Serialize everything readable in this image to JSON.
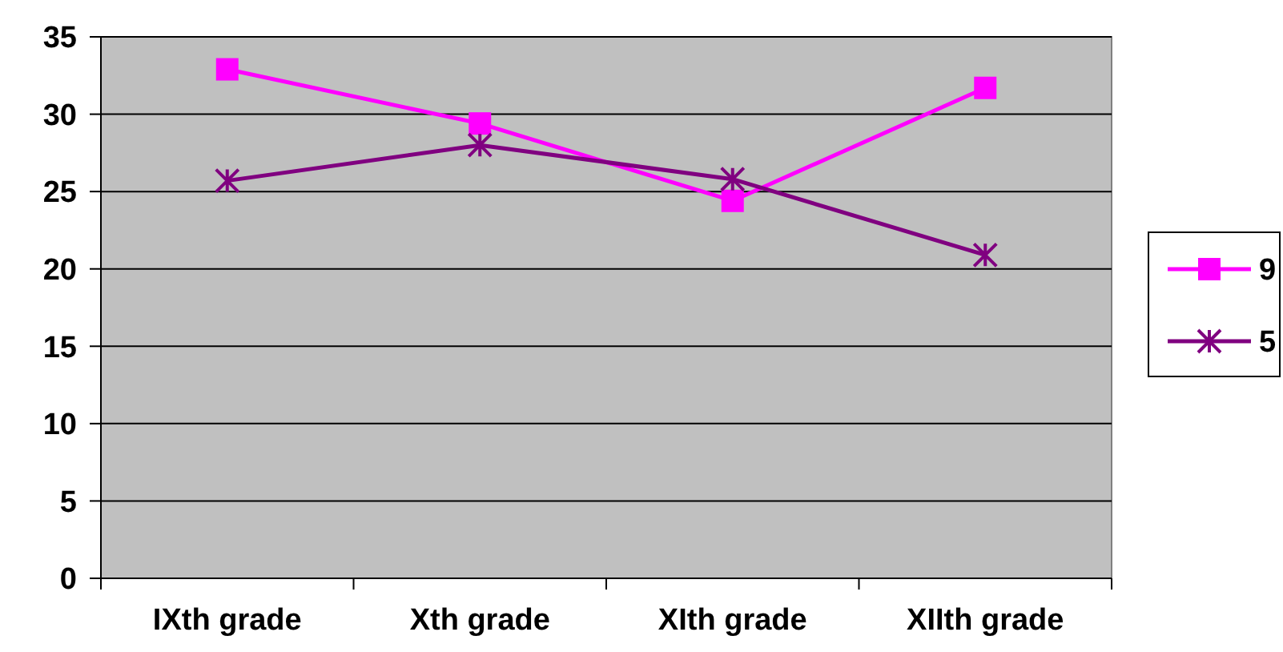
{
  "chart_data": {
    "type": "line",
    "categories": [
      "IXth grade",
      "Xth grade",
      "XIth grade",
      "XIIth grade"
    ],
    "series": [
      {
        "name": "9",
        "color": "#ff00ff",
        "marker": "square",
        "values": [
          32.9,
          29.4,
          24.4,
          31.7
        ]
      },
      {
        "name": "5",
        "color": "#800080",
        "marker": "cross",
        "values": [
          25.7,
          28.0,
          25.8,
          20.9
        ]
      }
    ],
    "ylim": [
      0,
      35
    ],
    "yticks": [
      0,
      5,
      10,
      15,
      20,
      25,
      30,
      35
    ],
    "grid": "y",
    "legend": "right"
  }
}
